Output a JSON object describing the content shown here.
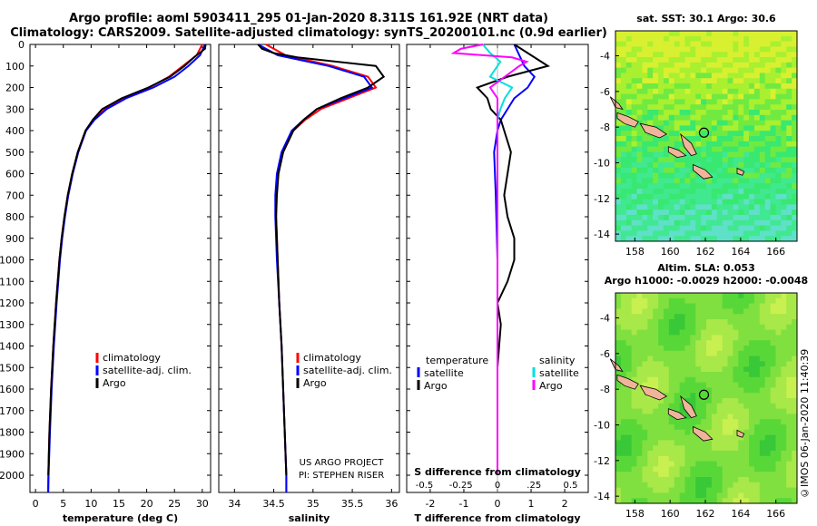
{
  "header": {
    "line1": "Argo profile: aoml 5903411_295 01-Jan-2020 8.311S 161.92E (NRT data)",
    "line2": "Climatology: CARS2009. Satellite-adjusted climatology: synTS_20200101.nc (0.9d earlier)"
  },
  "credits": {
    "project": "US ARGO PROJECT",
    "pi": "PI: STEPHEN RISER",
    "imos": "©IMOS 06-Jan-2020 11:40:39"
  },
  "colors": {
    "climatology": "#ff0000",
    "satellite": "#0000ff",
    "argo": "#000000",
    "s_satellite": "#00e0e0",
    "s_argo": "#ff00ff"
  },
  "chart_data": [
    {
      "type": "line",
      "panel": "temperature",
      "xlabel": "temperature (deg C)",
      "ylabel": "",
      "xlim": [
        -1,
        31.5
      ],
      "ylim": [
        2080,
        0
      ],
      "xticks": [
        0,
        5,
        10,
        15,
        20,
        25,
        30
      ],
      "yticks": [
        0,
        100,
        200,
        300,
        400,
        500,
        600,
        700,
        800,
        900,
        1000,
        1100,
        1200,
        1300,
        1400,
        1500,
        1600,
        1700,
        1800,
        1900,
        2000
      ],
      "legend": [
        "climatology",
        "satellite-adj. clim.",
        "Argo"
      ],
      "legend_position": "bottom-center",
      "series": [
        {
          "name": "climatology",
          "color": "#ff0000",
          "depth": [
            0,
            50,
            100,
            150,
            200,
            250,
            300,
            350,
            400,
            500,
            600,
            700,
            800,
            900,
            1000,
            1200,
            1400,
            1600,
            1800,
            2000,
            2080
          ],
          "values": [
            30.0,
            29.0,
            26.5,
            24.0,
            20.5,
            16.0,
            12.5,
            10.5,
            9.0,
            7.6,
            6.6,
            5.8,
            5.2,
            4.7,
            4.3,
            3.7,
            3.2,
            2.8,
            2.5,
            2.3,
            2.25
          ]
        },
        {
          "name": "satellite-adj. clim.",
          "color": "#0000ff",
          "depth": [
            0,
            50,
            100,
            150,
            200,
            250,
            300,
            350,
            400,
            500,
            600,
            700,
            800,
            900,
            1000,
            1200,
            1400,
            1600,
            1800,
            2000,
            2080
          ],
          "values": [
            30.5,
            29.6,
            27.5,
            25.0,
            21.2,
            16.3,
            12.8,
            10.6,
            9.1,
            7.7,
            6.7,
            5.9,
            5.3,
            4.8,
            4.4,
            3.8,
            3.3,
            2.9,
            2.6,
            2.35,
            2.3
          ]
        },
        {
          "name": "Argo",
          "color": "#000000",
          "depth": [
            0,
            20,
            40,
            60,
            100,
            150,
            200,
            250,
            300,
            350,
            400,
            500,
            600,
            700,
            800,
            900,
            1000,
            1200,
            1400,
            1600,
            1800,
            2000
          ],
          "values": [
            30.6,
            30.5,
            29.5,
            28.5,
            26.8,
            24.2,
            20.3,
            15.5,
            12.0,
            10.3,
            9.0,
            7.6,
            6.6,
            5.8,
            5.2,
            4.7,
            4.3,
            3.7,
            3.2,
            2.8,
            2.5,
            2.3
          ]
        }
      ]
    },
    {
      "type": "line",
      "panel": "salinity",
      "xlabel": "salinity",
      "xlim": [
        33.8,
        36.1
      ],
      "ylim": [
        2080,
        0
      ],
      "xticks": [
        34,
        34.5,
        35,
        35.5,
        36
      ],
      "legend": [
        "climatology",
        "satellite-adj. clim.",
        "Argo"
      ],
      "legend_position": "bottom-center",
      "series": [
        {
          "name": "climatology",
          "color": "#ff0000",
          "depth": [
            0,
            50,
            100,
            150,
            200,
            250,
            300,
            350,
            400,
            500,
            600,
            700,
            800,
            900,
            1000,
            1200,
            1400,
            1600,
            1800,
            2000,
            2080
          ],
          "values": [
            34.4,
            34.65,
            35.25,
            35.7,
            35.8,
            35.45,
            35.1,
            34.9,
            34.75,
            34.62,
            34.55,
            34.53,
            34.53,
            34.54,
            34.55,
            34.57,
            34.6,
            34.62,
            34.64,
            34.66,
            34.66
          ]
        },
        {
          "name": "satellite-adj. clim.",
          "color": "#0000ff",
          "depth": [
            0,
            50,
            100,
            150,
            200,
            250,
            300,
            350,
            400,
            500,
            600,
            700,
            800,
            900,
            1000,
            1200,
            1400,
            1600,
            1800,
            2000,
            2080
          ],
          "values": [
            34.3,
            34.55,
            35.2,
            35.65,
            35.75,
            35.4,
            35.05,
            34.88,
            34.73,
            34.6,
            34.54,
            34.52,
            34.52,
            34.53,
            34.54,
            34.57,
            34.6,
            34.62,
            34.64,
            34.66,
            34.66
          ]
        },
        {
          "name": "Argo",
          "color": "#000000",
          "depth": [
            0,
            20,
            40,
            60,
            100,
            150,
            200,
            250,
            300,
            350,
            400,
            500,
            600,
            700,
            800,
            900,
            1000,
            1200,
            1400,
            1600,
            1800,
            2000
          ],
          "values": [
            34.3,
            34.35,
            34.5,
            34.8,
            35.8,
            35.9,
            35.7,
            35.35,
            35.05,
            34.88,
            34.75,
            34.62,
            34.56,
            34.54,
            34.53,
            34.54,
            34.55,
            34.57,
            34.6,
            34.62,
            34.64,
            34.66
          ]
        }
      ]
    },
    {
      "type": "line",
      "panel": "differences",
      "xlabel": "T difference from climatology",
      "xlabel_top": "S difference from climatology",
      "xlim": [
        -2.7,
        2.7
      ],
      "ylim": [
        2080,
        0
      ],
      "xticks": [
        -2,
        -1,
        0,
        1,
        2
      ],
      "s_ticks": [
        -0.5,
        -0.25,
        0,
        0.25,
        0.5
      ],
      "legend": [
        "temperature",
        "satellite",
        "Argo",
        "salinity",
        "satellite",
        "Argo"
      ],
      "legend_position": "bottom-center",
      "series": [
        {
          "name": "satellite",
          "group": "temperature",
          "color": "#0000ff",
          "depth": [
            0,
            100,
            150,
            200,
            250,
            300,
            350,
            400,
            500,
            700,
            1000,
            1500,
            2000
          ],
          "values": [
            0.5,
            0.8,
            1.1,
            0.9,
            0.5,
            0.3,
            0.1,
            0.0,
            -0.1,
            -0.05,
            0.0,
            0.0,
            0.0
          ]
        },
        {
          "name": "Argo",
          "group": "temperature",
          "color": "#000000",
          "depth": [
            0,
            50,
            100,
            150,
            200,
            250,
            300,
            350,
            400,
            500,
            600,
            700,
            800,
            900,
            1000,
            1100,
            1200,
            1300,
            1400,
            1500,
            1700,
            2000
          ],
          "values": [
            0.5,
            1.0,
            1.5,
            0.3,
            -0.6,
            -0.3,
            -0.2,
            0.1,
            0.2,
            0.4,
            0.3,
            0.2,
            0.3,
            0.5,
            0.5,
            0.3,
            0.0,
            0.1,
            0.05,
            0.0,
            0.0,
            0.0
          ]
        },
        {
          "name": "satellite",
          "group": "salinity",
          "color": "#00e0e0",
          "depth": [
            0,
            40,
            80,
            150,
            200,
            250,
            300,
            350,
            400,
            500,
            700,
            1000,
            1500,
            2000
          ],
          "values": [
            -0.1,
            -0.05,
            0.02,
            -0.05,
            0.1,
            0.05,
            0.02,
            0.0,
            0.0,
            0.0,
            0.0,
            0.0,
            0.0,
            0.0
          ]
        },
        {
          "name": "Argo",
          "group": "salinity",
          "color": "#ff00ff",
          "depth": [
            0,
            20,
            40,
            60,
            80,
            100,
            150,
            200,
            250,
            300,
            400,
            500,
            700,
            1000,
            1500,
            2000
          ],
          "values": [
            -0.1,
            -0.25,
            -0.3,
            0.1,
            0.2,
            0.15,
            0.05,
            -0.05,
            0.0,
            0.0,
            0.0,
            0.0,
            0.0,
            0.0,
            0.0,
            0.0
          ]
        }
      ]
    },
    {
      "type": "heatmap",
      "panel": "sst-map",
      "title": "sat. SST: 30.1  Argo: 30.6",
      "xticks": [
        158,
        160,
        162,
        164,
        166
      ],
      "yticks": [
        -4,
        -6,
        -8,
        -10,
        -12,
        -14
      ],
      "xlim": [
        156.9,
        167.2
      ],
      "ylim": [
        -14.4,
        -2.6
      ],
      "profile_lon": 161.92,
      "profile_lat": -8.311
    },
    {
      "type": "heatmap",
      "panel": "sla-map",
      "title_line1": "Altim. SLA: 0.053",
      "title_line2": "Argo h1000: -0.0029 h2000: -0.0048",
      "xticks": [
        158,
        160,
        162,
        164,
        166
      ],
      "yticks": [
        -4,
        -6,
        -8,
        -10,
        -12,
        -14
      ],
      "xlim": [
        156.9,
        167.2
      ],
      "ylim": [
        -14.4,
        -2.6
      ],
      "profile_lon": 161.92,
      "profile_lat": -8.311
    }
  ]
}
